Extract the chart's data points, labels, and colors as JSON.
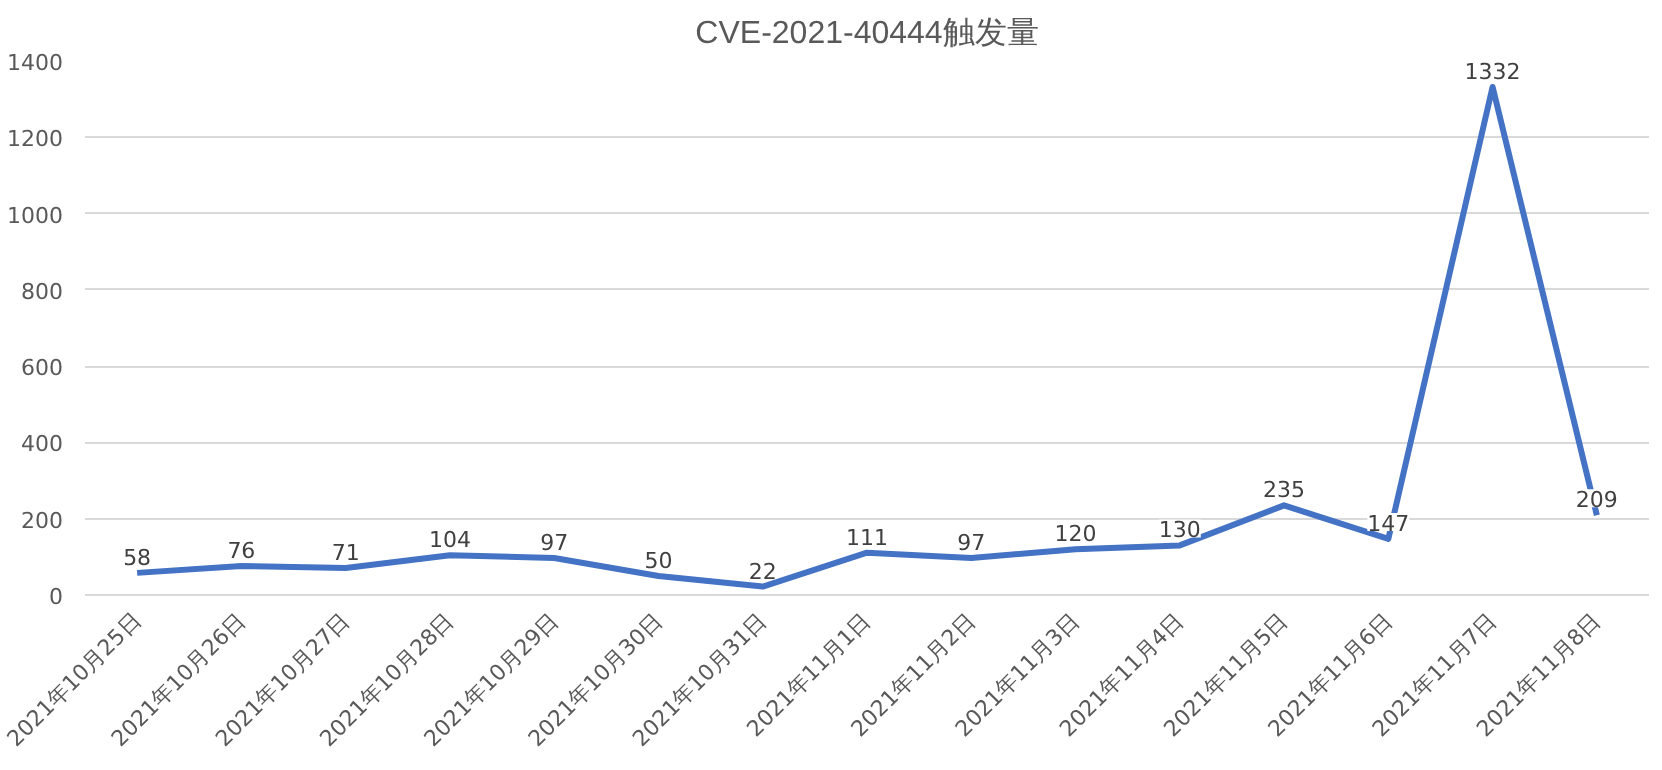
{
  "chart_data": {
    "type": "line",
    "title": "CVE-2021-40444触发量",
    "categories": [
      "2021年10月25日",
      "2021年10月26日",
      "2021年10月27日",
      "2021年10月28日",
      "2021年10月29日",
      "2021年10月30日",
      "2021年10月31日",
      "2021年11月1日",
      "2021年11月2日",
      "2021年11月3日",
      "2021年11月4日",
      "2021年11月5日",
      "2021年11月6日",
      "2021年11月7日",
      "2021年11月8日"
    ],
    "series": [
      {
        "color": "#4472c4",
        "values": [
          58,
          76,
          71,
          104,
          97,
          50,
          22,
          111,
          97,
          120,
          130,
          235,
          147,
          1332,
          209
        ]
      }
    ],
    "ylim": [
      0,
      1400
    ],
    "yticks": [
      0,
      200,
      400,
      600,
      800,
      1000,
      1200,
      1400
    ],
    "grid": "y",
    "data_labels": true,
    "marker": "none",
    "line_style": "solid"
  }
}
